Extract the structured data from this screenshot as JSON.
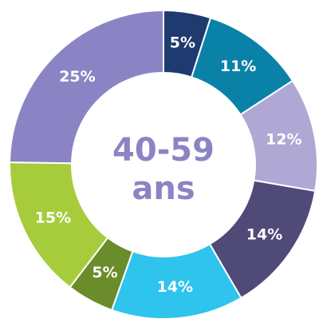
{
  "chart_data": {
    "type": "donut",
    "center_label": [
      "40-59",
      "ans"
    ],
    "values": [
      5,
      11,
      12,
      14,
      14,
      5,
      15,
      25
    ],
    "value_labels": [
      "5%",
      "11%",
      "12%",
      "14%",
      "14%",
      "5%",
      "15%",
      "25%"
    ],
    "colors": [
      "#1e3a6e",
      "#0a82a8",
      "#b0a8d4",
      "#4f4a78",
      "#2ec4ee",
      "#6b8c2a",
      "#a6cc3c",
      "#8b84c4"
    ]
  }
}
